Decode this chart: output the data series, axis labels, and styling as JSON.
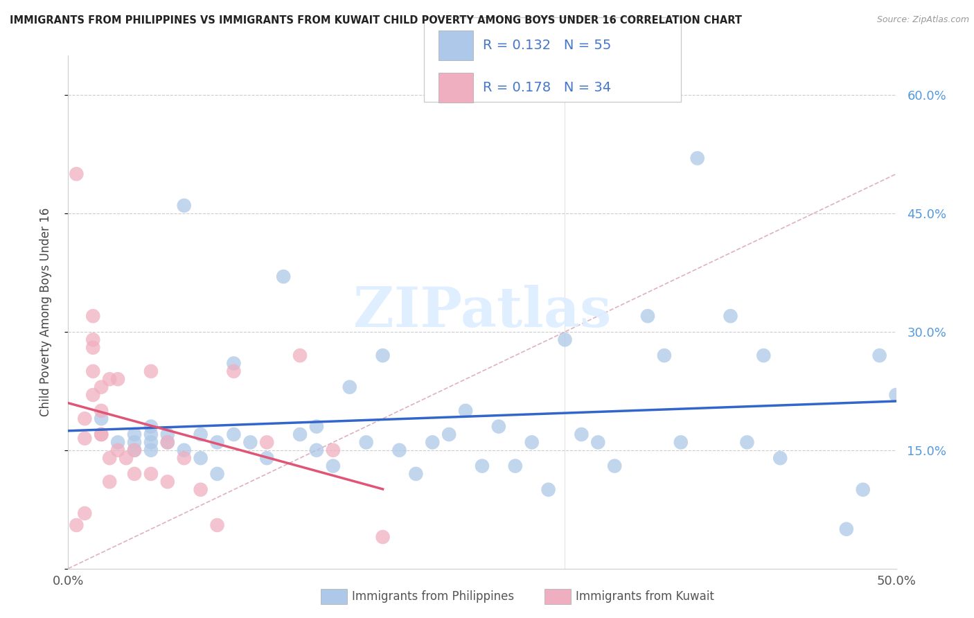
{
  "title": "IMMIGRANTS FROM PHILIPPINES VS IMMIGRANTS FROM KUWAIT CHILD POVERTY AMONG BOYS UNDER 16 CORRELATION CHART",
  "source": "Source: ZipAtlas.com",
  "ylabel": "Child Poverty Among Boys Under 16",
  "xlim": [
    0.0,
    0.5
  ],
  "ylim": [
    0.0,
    0.65
  ],
  "yticks": [
    0.0,
    0.15,
    0.3,
    0.45,
    0.6
  ],
  "ytick_labels_right": [
    "",
    "15.0%",
    "30.0%",
    "45.0%",
    "60.0%"
  ],
  "xticks": [
    0.0,
    0.1,
    0.2,
    0.3,
    0.4,
    0.5
  ],
  "xtick_labels": [
    "0.0%",
    "",
    "",
    "",
    "",
    "50.0%"
  ],
  "color_philippines": "#adc8e8",
  "color_kuwait": "#f0afc0",
  "line_color_philippines": "#3366cc",
  "line_color_kuwait": "#e05575",
  "diag_color": "#e0b0be",
  "watermark_color": "#ddeeff",
  "philippines_x": [
    0.02,
    0.03,
    0.04,
    0.04,
    0.04,
    0.05,
    0.05,
    0.05,
    0.05,
    0.06,
    0.06,
    0.07,
    0.07,
    0.08,
    0.08,
    0.09,
    0.09,
    0.1,
    0.1,
    0.11,
    0.12,
    0.13,
    0.14,
    0.15,
    0.15,
    0.16,
    0.17,
    0.18,
    0.19,
    0.2,
    0.21,
    0.22,
    0.23,
    0.24,
    0.25,
    0.26,
    0.27,
    0.28,
    0.29,
    0.3,
    0.31,
    0.32,
    0.33,
    0.35,
    0.36,
    0.37,
    0.38,
    0.4,
    0.41,
    0.42,
    0.43,
    0.47,
    0.48,
    0.49,
    0.5
  ],
  "philippines_y": [
    0.19,
    0.16,
    0.16,
    0.17,
    0.15,
    0.16,
    0.17,
    0.15,
    0.18,
    0.17,
    0.16,
    0.46,
    0.15,
    0.14,
    0.17,
    0.12,
    0.16,
    0.17,
    0.26,
    0.16,
    0.14,
    0.37,
    0.17,
    0.15,
    0.18,
    0.13,
    0.23,
    0.16,
    0.27,
    0.15,
    0.12,
    0.16,
    0.17,
    0.2,
    0.13,
    0.18,
    0.13,
    0.16,
    0.1,
    0.29,
    0.17,
    0.16,
    0.13,
    0.32,
    0.27,
    0.16,
    0.52,
    0.32,
    0.16,
    0.27,
    0.14,
    0.05,
    0.1,
    0.27,
    0.22
  ],
  "kuwait_x": [
    0.005,
    0.005,
    0.01,
    0.01,
    0.01,
    0.015,
    0.015,
    0.015,
    0.015,
    0.015,
    0.02,
    0.02,
    0.02,
    0.02,
    0.025,
    0.025,
    0.025,
    0.03,
    0.03,
    0.035,
    0.04,
    0.04,
    0.05,
    0.05,
    0.06,
    0.06,
    0.07,
    0.08,
    0.09,
    0.1,
    0.12,
    0.14,
    0.16,
    0.19
  ],
  "kuwait_y": [
    0.5,
    0.055,
    0.19,
    0.165,
    0.07,
    0.32,
    0.29,
    0.28,
    0.25,
    0.22,
    0.23,
    0.2,
    0.17,
    0.17,
    0.24,
    0.14,
    0.11,
    0.24,
    0.15,
    0.14,
    0.12,
    0.15,
    0.12,
    0.25,
    0.16,
    0.11,
    0.14,
    0.1,
    0.055,
    0.25,
    0.16,
    0.27,
    0.15,
    0.04
  ]
}
